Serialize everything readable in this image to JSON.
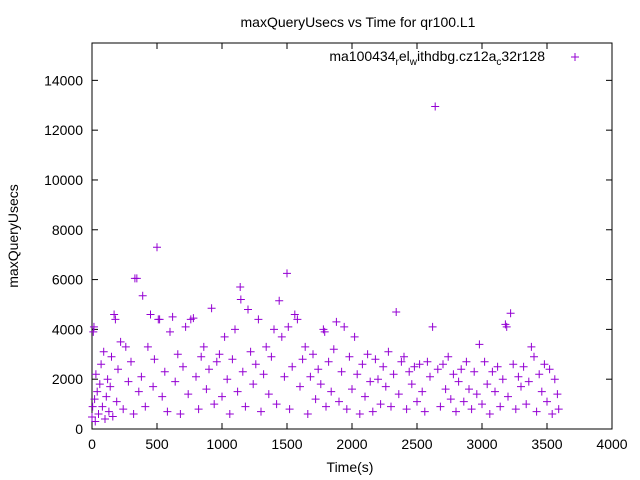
{
  "chart_data": {
    "type": "scatter",
    "title": "maxQueryUsecs vs Time for qr100.L1",
    "xlabel": "Time(s)",
    "ylabel": "maxQueryUsecs",
    "xlim": [
      0,
      4000
    ],
    "ylim": [
      0,
      15500
    ],
    "xticks": [
      0,
      500,
      1000,
      1500,
      2000,
      2500,
      3000,
      3500,
      4000
    ],
    "yticks": [
      0,
      2000,
      4000,
      6000,
      8000,
      10000,
      12000,
      14000
    ],
    "grid": false,
    "legend_position": "top-right",
    "marker": "plus",
    "series": [
      {
        "name_parts": {
          "p1": "ma100434",
          "s1": "r",
          "p2": "el",
          "s2": "w",
          "p3": "ithdbg.cz12a",
          "s3": "c",
          "p4": "32r128"
        },
        "color": "#9400d3",
        "points": [
          [
            0,
            480
          ],
          [
            5,
            900
          ],
          [
            10,
            3900
          ],
          [
            15,
            4100
          ],
          [
            20,
            1200
          ],
          [
            25,
            300
          ],
          [
            30,
            2200
          ],
          [
            40,
            1500
          ],
          [
            50,
            600
          ],
          [
            60,
            1800
          ],
          [
            70,
            2600
          ],
          [
            80,
            900
          ],
          [
            90,
            3100
          ],
          [
            100,
            400
          ],
          [
            110,
            1300
          ],
          [
            120,
            2000
          ],
          [
            130,
            700
          ],
          [
            140,
            1700
          ],
          [
            150,
            2900
          ],
          [
            160,
            500
          ],
          [
            170,
            4600
          ],
          [
            180,
            4400
          ],
          [
            190,
            1100
          ],
          [
            200,
            2400
          ],
          [
            220,
            3500
          ],
          [
            240,
            800
          ],
          [
            260,
            3300
          ],
          [
            280,
            1900
          ],
          [
            300,
            2700
          ],
          [
            320,
            600
          ],
          [
            330,
            6050
          ],
          [
            345,
            6050
          ],
          [
            360,
            1500
          ],
          [
            380,
            2100
          ],
          [
            390,
            5350
          ],
          [
            410,
            900
          ],
          [
            430,
            3300
          ],
          [
            450,
            4600
          ],
          [
            470,
            1700
          ],
          [
            480,
            2800
          ],
          [
            500,
            7300
          ],
          [
            510,
            4400
          ],
          [
            520,
            4400
          ],
          [
            540,
            1300
          ],
          [
            560,
            2300
          ],
          [
            580,
            700
          ],
          [
            600,
            3900
          ],
          [
            620,
            4500
          ],
          [
            640,
            1900
          ],
          [
            660,
            3000
          ],
          [
            680,
            600
          ],
          [
            700,
            2500
          ],
          [
            720,
            4100
          ],
          [
            740,
            1400
          ],
          [
            760,
            4400
          ],
          [
            780,
            4450
          ],
          [
            800,
            2100
          ],
          [
            820,
            800
          ],
          [
            840,
            2900
          ],
          [
            860,
            3300
          ],
          [
            880,
            1600
          ],
          [
            900,
            2400
          ],
          [
            920,
            4850
          ],
          [
            940,
            1000
          ],
          [
            960,
            2700
          ],
          [
            980,
            3000
          ],
          [
            1000,
            1300
          ],
          [
            1020,
            3700
          ],
          [
            1040,
            2000
          ],
          [
            1060,
            600
          ],
          [
            1080,
            2800
          ],
          [
            1100,
            4000
          ],
          [
            1120,
            1500
          ],
          [
            1140,
            5700
          ],
          [
            1145,
            5200
          ],
          [
            1160,
            2300
          ],
          [
            1180,
            900
          ],
          [
            1200,
            4800
          ],
          [
            1220,
            3100
          ],
          [
            1240,
            1800
          ],
          [
            1260,
            2600
          ],
          [
            1280,
            4400
          ],
          [
            1300,
            700
          ],
          [
            1320,
            2200
          ],
          [
            1340,
            3300
          ],
          [
            1360,
            1400
          ],
          [
            1380,
            2900
          ],
          [
            1400,
            4000
          ],
          [
            1420,
            1000
          ],
          [
            1440,
            5150
          ],
          [
            1460,
            3700
          ],
          [
            1480,
            2100
          ],
          [
            1500,
            6250
          ],
          [
            1510,
            4100
          ],
          [
            1520,
            800
          ],
          [
            1540,
            2500
          ],
          [
            1560,
            4600
          ],
          [
            1580,
            4400
          ],
          [
            1600,
            1700
          ],
          [
            1620,
            2800
          ],
          [
            1640,
            3300
          ],
          [
            1660,
            600
          ],
          [
            1680,
            2100
          ],
          [
            1700,
            3000
          ],
          [
            1720,
            1200
          ],
          [
            1740,
            2400
          ],
          [
            1760,
            1800
          ],
          [
            1780,
            4000
          ],
          [
            1790,
            3900
          ],
          [
            1800,
            900
          ],
          [
            1820,
            2700
          ],
          [
            1840,
            1500
          ],
          [
            1860,
            3200
          ],
          [
            1880,
            4300
          ],
          [
            1900,
            1100
          ],
          [
            1920,
            2300
          ],
          [
            1940,
            4100
          ],
          [
            1960,
            800
          ],
          [
            1980,
            2900
          ],
          [
            2000,
            1600
          ],
          [
            2020,
            3700
          ],
          [
            2040,
            2200
          ],
          [
            2060,
            600
          ],
          [
            2080,
            2600
          ],
          [
            2100,
            1300
          ],
          [
            2120,
            3000
          ],
          [
            2140,
            1900
          ],
          [
            2160,
            700
          ],
          [
            2180,
            2800
          ],
          [
            2200,
            2000
          ],
          [
            2220,
            1000
          ],
          [
            2240,
            2500
          ],
          [
            2260,
            1700
          ],
          [
            2280,
            3100
          ],
          [
            2300,
            900
          ],
          [
            2320,
            2200
          ],
          [
            2340,
            4700
          ],
          [
            2360,
            1400
          ],
          [
            2380,
            2700
          ],
          [
            2400,
            2900
          ],
          [
            2420,
            800
          ],
          [
            2440,
            2300
          ],
          [
            2460,
            1800
          ],
          [
            2480,
            2500
          ],
          [
            2500,
            1100
          ],
          [
            2520,
            2600
          ],
          [
            2540,
            1500
          ],
          [
            2560,
            700
          ],
          [
            2580,
            2700
          ],
          [
            2600,
            2100
          ],
          [
            2620,
            4100
          ],
          [
            2640,
            12950
          ],
          [
            2660,
            2400
          ],
          [
            2680,
            900
          ],
          [
            2700,
            2600
          ],
          [
            2720,
            1600
          ],
          [
            2740,
            2900
          ],
          [
            2760,
            1200
          ],
          [
            2780,
            2200
          ],
          [
            2800,
            700
          ],
          [
            2820,
            1900
          ],
          [
            2840,
            2400
          ],
          [
            2860,
            1100
          ],
          [
            2880,
            2700
          ],
          [
            2900,
            1600
          ],
          [
            2920,
            800
          ],
          [
            2940,
            2300
          ],
          [
            2960,
            1400
          ],
          [
            2980,
            3400
          ],
          [
            3000,
            1000
          ],
          [
            3020,
            2700
          ],
          [
            3040,
            1800
          ],
          [
            3060,
            600
          ],
          [
            3080,
            2300
          ],
          [
            3100,
            1500
          ],
          [
            3120,
            2500
          ],
          [
            3140,
            900
          ],
          [
            3160,
            2000
          ],
          [
            3180,
            4200
          ],
          [
            3190,
            4100
          ],
          [
            3200,
            1300
          ],
          [
            3220,
            4650
          ],
          [
            3240,
            2600
          ],
          [
            3260,
            800
          ],
          [
            3280,
            2100
          ],
          [
            3300,
            1700
          ],
          [
            3320,
            2500
          ],
          [
            3340,
            1000
          ],
          [
            3360,
            1900
          ],
          [
            3380,
            3300
          ],
          [
            3400,
            2900
          ],
          [
            3420,
            700
          ],
          [
            3440,
            2200
          ],
          [
            3460,
            1500
          ],
          [
            3480,
            2600
          ],
          [
            3500,
            1100
          ],
          [
            3520,
            2400
          ],
          [
            3540,
            600
          ],
          [
            3560,
            2000
          ],
          [
            3580,
            1400
          ],
          [
            3590,
            800
          ]
        ]
      }
    ]
  }
}
